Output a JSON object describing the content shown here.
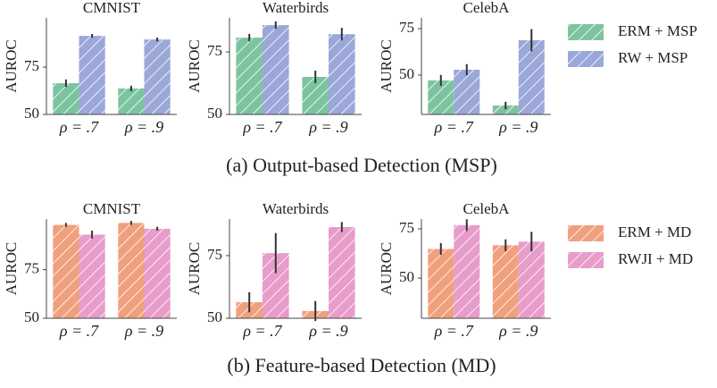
{
  "chart_data": [
    {
      "type": "bar",
      "title": "CMNIST",
      "y_label": "AUROC",
      "categories": [
        "ρ = .7",
        "ρ = .9"
      ],
      "series": [
        {
          "color": "#7cc4a0",
          "values": [
            66.5,
            63.7
          ],
          "errors": [
            2,
            1.5
          ]
        },
        {
          "color": "#9ba7d8",
          "values": [
            91.5,
            89.6
          ],
          "errors": [
            1,
            1
          ]
        }
      ],
      "ylim": [
        50,
        101
      ],
      "yticks": [
        50,
        75
      ]
    },
    {
      "type": "bar",
      "title": "Waterbirds",
      "y_label": "AUROC",
      "categories": [
        "ρ = .7",
        "ρ = .9"
      ],
      "series": [
        {
          "color": "#7cc4a0",
          "values": [
            80.7,
            65
          ],
          "errors": [
            1.5,
            2.5
          ]
        },
        {
          "color": "#9ba7d8",
          "values": [
            85.7,
            82.1
          ],
          "errors": [
            1.5,
            2.5
          ]
        }
      ],
      "ylim": [
        50,
        88.6
      ],
      "yticks": [
        50,
        75
      ]
    },
    {
      "type": "bar",
      "title": "CelebA",
      "y_label": "AUROC",
      "categories": [
        "ρ = .7",
        "ρ = .9"
      ],
      "series": [
        {
          "name": "ERM + MSP",
          "color": "#7cc4a0",
          "values": [
            47.1,
            33.6
          ],
          "errors": [
            3,
            2
          ]
        },
        {
          "name": "RW + MSP",
          "color": "#9ba7d8",
          "values": [
            52.9,
            68.75
          ],
          "errors": [
            3,
            6
          ]
        }
      ],
      "ylim": [
        28.8,
        80.8
      ],
      "yticks": [
        50,
        75
      ],
      "legend": "outside right"
    },
    {
      "type": "bar",
      "title": "CMNIST",
      "y_label": "AUROC",
      "categories": [
        "ρ = .7",
        "ρ = .9"
      ],
      "series": [
        {
          "color": "#f0a07c",
          "values": [
            98,
            99
          ],
          "errors": [
            1,
            1
          ]
        },
        {
          "color": "#e79cca",
          "values": [
            93,
            96
          ],
          "errors": [
            2,
            1
          ]
        }
      ],
      "ylim": [
        50,
        101
      ],
      "yticks": [
        50,
        75
      ]
    },
    {
      "type": "bar",
      "title": "Waterbirds",
      "y_label": "AUROC",
      "categories": [
        "ρ = .7",
        "ρ = .9"
      ],
      "series": [
        {
          "color": "#f0a07c",
          "values": [
            56.4,
            52.9
          ],
          "errors": [
            4,
            4
          ]
        },
        {
          "color": "#e79cca",
          "values": [
            76,
            86.4
          ],
          "errors": [
            8,
            2
          ]
        }
      ],
      "ylim": [
        50,
        89.6
      ],
      "yticks": [
        50,
        75
      ]
    },
    {
      "type": "bar",
      "title": "CelebA",
      "y_label": "AUROC",
      "categories": [
        "ρ = .7",
        "ρ = .9"
      ],
      "series": [
        {
          "name": "ERM + MD",
          "color": "#f0a07c",
          "values": [
            64.8,
            66.7
          ],
          "errors": [
            3,
            3
          ]
        },
        {
          "name": "RWJI + MD",
          "color": "#e79cca",
          "values": [
            76.9,
            68.5
          ],
          "errors": [
            3,
            5
          ]
        }
      ],
      "ylim": [
        29.6,
        80
      ],
      "yticks": [
        50,
        75
      ],
      "legend": "outside right"
    }
  ],
  "captions": [
    "(a) Output-based Detection (MSP)",
    "(b) Feature-based Detection (MD)"
  ]
}
